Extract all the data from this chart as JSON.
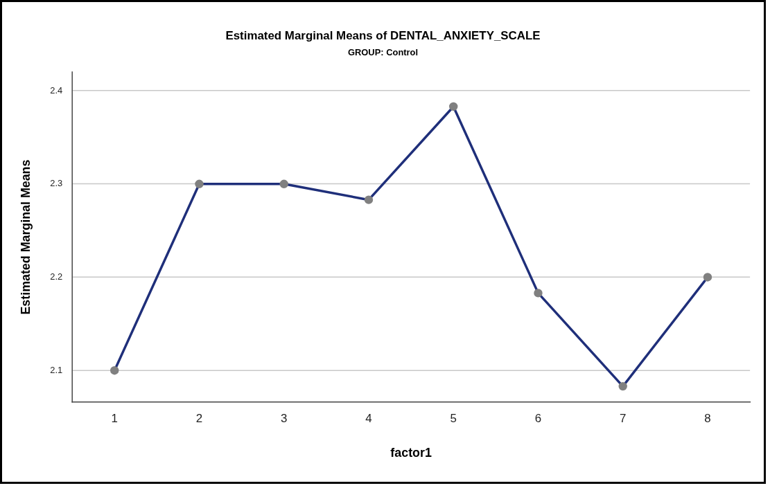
{
  "chart_data": {
    "type": "line",
    "title": "Estimated Marginal Means of DENTAL_ANXIETY_SCALE",
    "subtitle": "GROUP: Control",
    "xlabel": "factor1",
    "ylabel": "Estimated Marginal Means",
    "categories": [
      "1",
      "2",
      "3",
      "4",
      "5",
      "6",
      "7",
      "8"
    ],
    "series": [
      {
        "color": "#1f2f7a",
        "colors": [
          "#808080",
          "#808080",
          "#808080",
          "#808080",
          "#808080",
          "#808080",
          "#808080",
          "#808080"
        ],
        "values": [
          2.1,
          2.3,
          2.3,
          2.283,
          2.383,
          2.183,
          2.083,
          2.2
        ]
      }
    ],
    "ylim": [
      2.066,
      2.42
    ],
    "yticks": [
      2.1,
      2.2,
      2.3,
      2.4
    ],
    "grid": "y",
    "legend": false,
    "marker": "circle",
    "line_style": "solid"
  }
}
